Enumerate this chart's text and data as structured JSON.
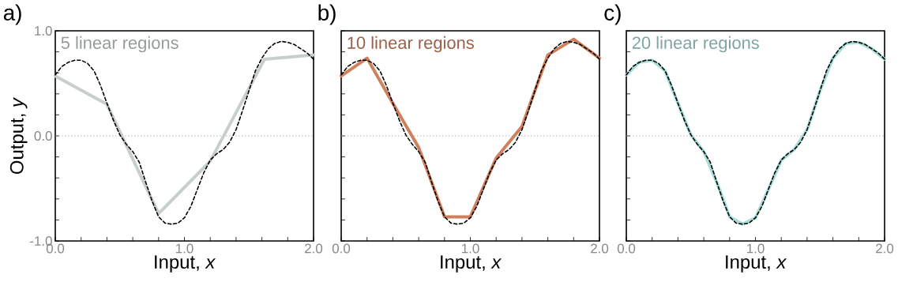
{
  "chart_data": [
    {
      "type": "line",
      "title": "a)",
      "xlabel": "Input, *x*",
      "ylabel": "Output, *y*",
      "xlim": [
        0,
        2
      ],
      "ylim": [
        -1,
        1
      ],
      "xticks": [
        {
          "value": 0,
          "label": "0.0"
        },
        {
          "value": 0.2,
          "label": null
        },
        {
          "value": 0.4,
          "label": null
        },
        {
          "value": 0.6,
          "label": null
        },
        {
          "value": 0.8,
          "label": null
        },
        {
          "value": 1,
          "label": "1.0"
        },
        {
          "value": 1.2,
          "label": null
        },
        {
          "value": 1.4,
          "label": null
        },
        {
          "value": 1.6,
          "label": null
        },
        {
          "value": 1.8,
          "label": null
        },
        {
          "value": 2,
          "label": "2.0"
        }
      ],
      "yticks": [
        {
          "value": -1,
          "label": "-1.0"
        },
        {
          "value": -0.8,
          "label": null
        },
        {
          "value": -0.6,
          "label": null
        },
        {
          "value": -0.4,
          "label": null
        },
        {
          "value": -0.2,
          "label": null
        },
        {
          "value": 0,
          "label": "0.0"
        },
        {
          "value": 0.2,
          "label": null
        },
        {
          "value": 0.4,
          "label": null
        },
        {
          "value": 0.6,
          "label": null
        },
        {
          "value": 0.8,
          "label": null
        },
        {
          "value": 1,
          "label": "1.0"
        }
      ],
      "ref_lines": [
        {
          "axis": "y",
          "value": 0,
          "color": "#aaaaaa",
          "line_style": "dotted"
        }
      ],
      "series": [
        {
          "name": "5 linear regions",
          "color": "#c8cece",
          "line_style": "solid",
          "x": [
            0,
            0.4,
            0.8,
            1.2,
            1.62,
            2.0
          ],
          "values": [
            0.57,
            0.3,
            -0.74,
            -0.24,
            0.73,
            0.77
          ]
        },
        {
          "color": "#000000",
          "line_style": "dashed",
          "x": [
            0,
            0.05,
            0.1,
            0.15,
            0.2,
            0.25,
            0.3,
            0.35,
            0.4,
            0.45,
            0.5,
            0.55,
            0.6,
            0.65,
            0.7,
            0.75,
            0.8,
            0.85,
            0.9,
            0.95,
            1.0,
            1.05,
            1.1,
            1.15,
            1.2,
            1.25,
            1.3,
            1.35,
            1.4,
            1.45,
            1.5,
            1.55,
            1.6,
            1.65,
            1.7,
            1.75,
            1.8,
            1.85,
            1.9,
            1.95,
            2.0
          ],
          "values": [
            0.58,
            0.66,
            0.7,
            0.72,
            0.72,
            0.69,
            0.62,
            0.48,
            0.31,
            0.15,
            0.01,
            -0.08,
            -0.15,
            -0.25,
            -0.44,
            -0.62,
            -0.77,
            -0.83,
            -0.84,
            -0.83,
            -0.78,
            -0.67,
            -0.51,
            -0.35,
            -0.23,
            -0.17,
            -0.13,
            -0.06,
            0.06,
            0.24,
            0.43,
            0.62,
            0.74,
            0.83,
            0.88,
            0.9,
            0.89,
            0.87,
            0.83,
            0.79,
            0.73
          ]
        }
      ]
    },
    {
      "type": "line",
      "title": "b)",
      "xlabel": "Input, *x*",
      "xlim": [
        0,
        2
      ],
      "ylim": [
        -1,
        1
      ],
      "tick_labels": "x",
      "xticks": [
        {
          "value": 0,
          "label": "0.0"
        },
        {
          "value": 0.2,
          "label": null
        },
        {
          "value": 0.4,
          "label": null
        },
        {
          "value": 0.6,
          "label": null
        },
        {
          "value": 0.8,
          "label": null
        },
        {
          "value": 1,
          "label": "1.0"
        },
        {
          "value": 1.2,
          "label": null
        },
        {
          "value": 1.4,
          "label": null
        },
        {
          "value": 1.6,
          "label": null
        },
        {
          "value": 1.8,
          "label": null
        },
        {
          "value": 2,
          "label": "2.0"
        }
      ],
      "yticks": [
        {
          "value": -1,
          "label": null
        },
        {
          "value": -0.8,
          "label": null
        },
        {
          "value": -0.6,
          "label": null
        },
        {
          "value": -0.4,
          "label": null
        },
        {
          "value": -0.2,
          "label": null
        },
        {
          "value": 0,
          "label": null
        },
        {
          "value": 0.2,
          "label": null
        },
        {
          "value": 0.4,
          "label": null
        },
        {
          "value": 0.6,
          "label": null
        },
        {
          "value": 0.8,
          "label": null
        },
        {
          "value": 1,
          "label": null
        }
      ],
      "ref_lines": [
        {
          "axis": "y",
          "value": 0,
          "color": "#aaaaaa",
          "line_style": "dotted"
        }
      ],
      "series": [
        {
          "name": "10 linear regions",
          "color": "#d1805e",
          "line_style": "solid",
          "x": [
            0,
            0.2,
            0.4,
            0.6,
            0.8,
            1.0,
            1.2,
            1.4,
            1.6,
            1.8,
            2.0
          ],
          "values": [
            0.57,
            0.74,
            0.31,
            -0.11,
            -0.77,
            -0.77,
            -0.21,
            0.09,
            0.77,
            0.92,
            0.74
          ]
        },
        {
          "color": "#000000",
          "line_style": "dashed",
          "x": [
            0,
            0.05,
            0.1,
            0.15,
            0.2,
            0.25,
            0.3,
            0.35,
            0.4,
            0.45,
            0.5,
            0.55,
            0.6,
            0.65,
            0.7,
            0.75,
            0.8,
            0.85,
            0.9,
            0.95,
            1.0,
            1.05,
            1.1,
            1.15,
            1.2,
            1.25,
            1.3,
            1.35,
            1.4,
            1.45,
            1.5,
            1.55,
            1.6,
            1.65,
            1.7,
            1.75,
            1.8,
            1.85,
            1.9,
            1.95,
            2.0
          ],
          "values": [
            0.58,
            0.66,
            0.7,
            0.72,
            0.72,
            0.69,
            0.62,
            0.48,
            0.31,
            0.15,
            0.01,
            -0.08,
            -0.15,
            -0.25,
            -0.44,
            -0.62,
            -0.77,
            -0.83,
            -0.84,
            -0.83,
            -0.78,
            -0.67,
            -0.51,
            -0.35,
            -0.23,
            -0.17,
            -0.13,
            -0.06,
            0.06,
            0.24,
            0.43,
            0.62,
            0.74,
            0.83,
            0.88,
            0.9,
            0.89,
            0.87,
            0.83,
            0.79,
            0.73
          ]
        }
      ]
    },
    {
      "type": "line",
      "title": "c)",
      "xlabel": "Input, *x*",
      "xlim": [
        0,
        2
      ],
      "ylim": [
        -1,
        1
      ],
      "tick_labels": "x",
      "xticks": [
        {
          "value": 0,
          "label": "0.0"
        },
        {
          "value": 0.2,
          "label": null
        },
        {
          "value": 0.4,
          "label": null
        },
        {
          "value": 0.6,
          "label": null
        },
        {
          "value": 0.8,
          "label": null
        },
        {
          "value": 1,
          "label": "1.0"
        },
        {
          "value": 1.2,
          "label": null
        },
        {
          "value": 1.4,
          "label": null
        },
        {
          "value": 1.6,
          "label": null
        },
        {
          "value": 1.8,
          "label": null
        },
        {
          "value": 2,
          "label": "2.0"
        }
      ],
      "yticks": [
        {
          "value": -1,
          "label": null
        },
        {
          "value": -0.8,
          "label": null
        },
        {
          "value": -0.6,
          "label": null
        },
        {
          "value": -0.4,
          "label": null
        },
        {
          "value": -0.2,
          "label": null
        },
        {
          "value": 0,
          "label": null
        },
        {
          "value": 0.2,
          "label": null
        },
        {
          "value": 0.4,
          "label": null
        },
        {
          "value": 0.6,
          "label": null
        },
        {
          "value": 0.8,
          "label": null
        },
        {
          "value": 1,
          "label": null
        }
      ],
      "ref_lines": [
        {
          "axis": "y",
          "value": 0,
          "color": "#aaaaaa",
          "line_style": "dotted"
        }
      ],
      "series": [
        {
          "name": "20 linear regions",
          "color": "#a8dcd6",
          "line_style": "solid",
          "x": [
            0,
            0.1,
            0.2,
            0.3,
            0.4,
            0.5,
            0.6,
            0.7,
            0.8,
            0.9,
            1.0,
            1.1,
            1.2,
            1.3,
            1.4,
            1.5,
            1.6,
            1.7,
            1.8,
            1.9,
            2.0
          ],
          "values": [
            0.58,
            0.7,
            0.72,
            0.62,
            0.31,
            0.01,
            -0.15,
            -0.44,
            -0.77,
            -0.84,
            -0.78,
            -0.51,
            -0.23,
            -0.13,
            0.06,
            0.43,
            0.74,
            0.88,
            0.89,
            0.83,
            0.73
          ]
        },
        {
          "color": "#000000",
          "line_style": "dashed",
          "x": [
            0,
            0.05,
            0.1,
            0.15,
            0.2,
            0.25,
            0.3,
            0.35,
            0.4,
            0.45,
            0.5,
            0.55,
            0.6,
            0.65,
            0.7,
            0.75,
            0.8,
            0.85,
            0.9,
            0.95,
            1.0,
            1.05,
            1.1,
            1.15,
            1.2,
            1.25,
            1.3,
            1.35,
            1.4,
            1.45,
            1.5,
            1.55,
            1.6,
            1.65,
            1.7,
            1.75,
            1.8,
            1.85,
            1.9,
            1.95,
            2.0
          ],
          "values": [
            0.58,
            0.66,
            0.7,
            0.72,
            0.72,
            0.69,
            0.62,
            0.48,
            0.31,
            0.15,
            0.01,
            -0.08,
            -0.15,
            -0.25,
            -0.44,
            -0.62,
            -0.77,
            -0.83,
            -0.84,
            -0.83,
            -0.78,
            -0.67,
            -0.51,
            -0.35,
            -0.23,
            -0.17,
            -0.13,
            -0.06,
            0.06,
            0.24,
            0.43,
            0.62,
            0.74,
            0.83,
            0.88,
            0.9,
            0.89,
            0.87,
            0.83,
            0.79,
            0.73
          ]
        }
      ]
    }
  ]
}
